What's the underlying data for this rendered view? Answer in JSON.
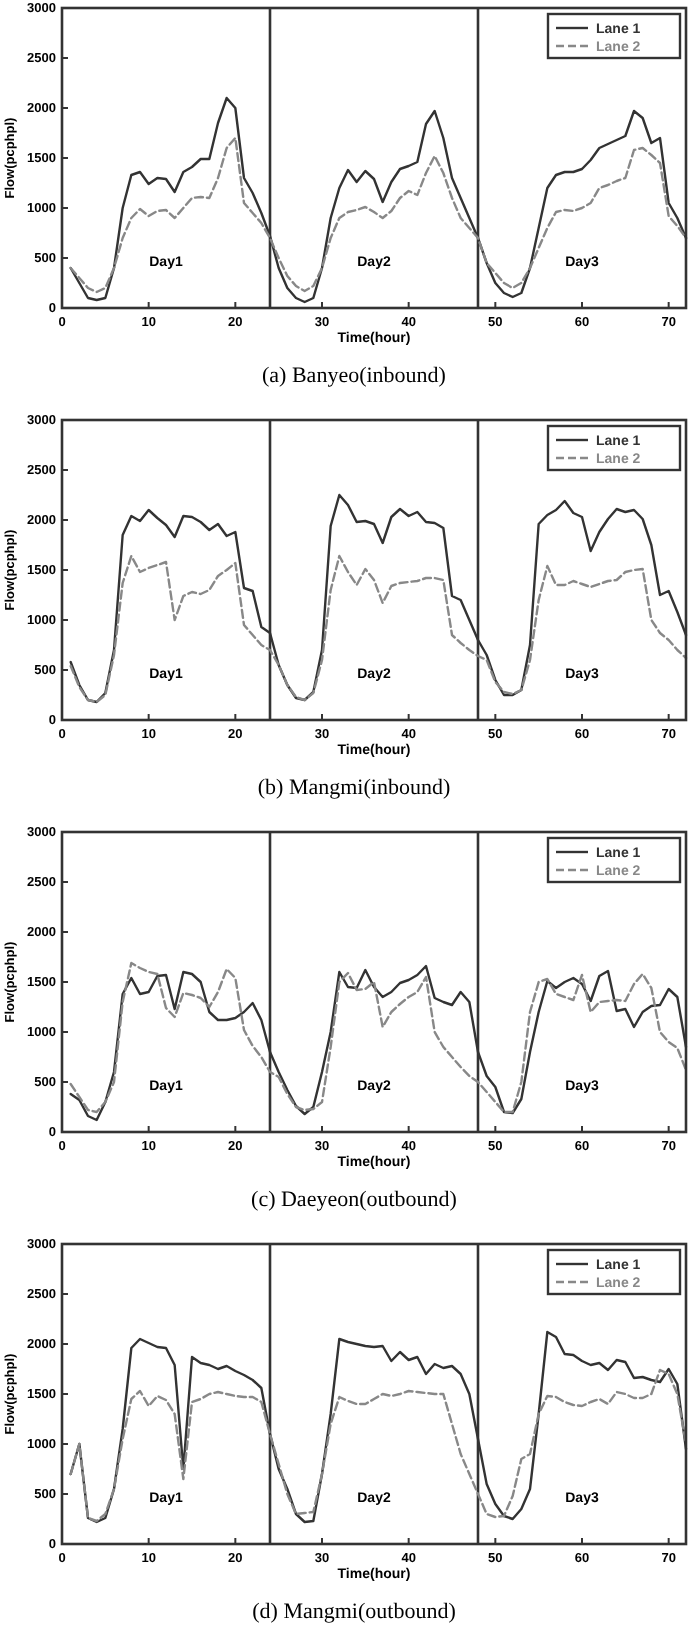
{
  "chart_data": [
    {
      "type": "line",
      "title": "(a) Banyeo(inbound)",
      "xlabel": "Time(hour)",
      "ylabel": "Flow(pcphpl)",
      "xlim": [
        0,
        72
      ],
      "xticks": [
        0,
        10,
        20,
        30,
        40,
        50,
        60,
        70
      ],
      "ylim": [
        0,
        3000
      ],
      "yticks": [
        0,
        500,
        1000,
        1500,
        2000,
        2500,
        3000
      ],
      "legend": "top right",
      "grid": false,
      "x": [
        1,
        2,
        3,
        4,
        5,
        6,
        7,
        8,
        9,
        10,
        11,
        12,
        13,
        14,
        15,
        16,
        17,
        18,
        19,
        20,
        21,
        22,
        23,
        24,
        25,
        26,
        27,
        28,
        29,
        30,
        31,
        32,
        33,
        34,
        35,
        36,
        37,
        38,
        39,
        40,
        41,
        42,
        43,
        44,
        45,
        46,
        47,
        48,
        49,
        50,
        51,
        52,
        53,
        54,
        55,
        56,
        57,
        58,
        59,
        60,
        61,
        62,
        63,
        64,
        65,
        66,
        67,
        68,
        69,
        70,
        71,
        72
      ],
      "ref_lines": [
        {
          "axis": "x",
          "value": 24
        },
        {
          "axis": "x",
          "value": 48
        }
      ],
      "annotations": [
        "Day1",
        "Day2",
        "Day3"
      ],
      "series": [
        {
          "name": "Lane 1",
          "color": "#333333",
          "line_style": "solid",
          "values": [
            400,
            250,
            100,
            80,
            100,
            400,
            1000,
            1330,
            1360,
            1240,
            1300,
            1290,
            1160,
            1360,
            1410,
            1490,
            1490,
            1850,
            2100,
            2000,
            1300,
            1150,
            950,
            720,
            400,
            200,
            100,
            60,
            100,
            400,
            900,
            1200,
            1380,
            1260,
            1370,
            1290,
            1060,
            1260,
            1390,
            1420,
            1460,
            1840,
            1970,
            1700,
            1300,
            1100,
            900,
            700,
            450,
            250,
            150,
            110,
            150,
            400,
            800,
            1200,
            1330,
            1360,
            1360,
            1390,
            1480,
            1600,
            1640,
            1680,
            1720,
            1970,
            1900,
            1650,
            1700,
            1050,
            900,
            700
          ]
        },
        {
          "name": "Lane 2",
          "color": "#888888",
          "line_style": "dashed",
          "values": [
            400,
            300,
            200,
            160,
            200,
            400,
            700,
            900,
            990,
            920,
            970,
            980,
            900,
            1000,
            1100,
            1110,
            1100,
            1300,
            1600,
            1700,
            1050,
            950,
            850,
            700,
            500,
            320,
            220,
            170,
            220,
            400,
            700,
            900,
            960,
            980,
            1010,
            960,
            900,
            970,
            1100,
            1170,
            1130,
            1350,
            1520,
            1350,
            1100,
            900,
            800,
            700,
            450,
            350,
            250,
            200,
            250,
            400,
            600,
            800,
            960,
            980,
            970,
            1000,
            1050,
            1200,
            1230,
            1270,
            1300,
            1580,
            1600,
            1530,
            1450,
            920,
            820,
            700
          ]
        }
      ]
    },
    {
      "type": "line",
      "title": "(b) Mangmi(inbound)",
      "xlabel": "Time(hour)",
      "ylabel": "Flow(pcphpl)",
      "xlim": [
        0,
        72
      ],
      "xticks": [
        0,
        10,
        20,
        30,
        40,
        50,
        60,
        70
      ],
      "ylim": [
        0,
        3000
      ],
      "yticks": [
        0,
        500,
        1000,
        1500,
        2000,
        2500,
        3000
      ],
      "legend": "top right",
      "grid": false,
      "x": [
        1,
        2,
        3,
        4,
        5,
        6,
        7,
        8,
        9,
        10,
        11,
        12,
        13,
        14,
        15,
        16,
        17,
        18,
        19,
        20,
        21,
        22,
        23,
        24,
        25,
        26,
        27,
        28,
        29,
        30,
        31,
        32,
        33,
        34,
        35,
        36,
        37,
        38,
        39,
        40,
        41,
        42,
        43,
        44,
        45,
        46,
        47,
        48,
        49,
        50,
        51,
        52,
        53,
        54,
        55,
        56,
        57,
        58,
        59,
        60,
        61,
        62,
        63,
        64,
        65,
        66,
        67,
        68,
        69,
        70,
        71,
        72
      ],
      "ref_lines": [
        {
          "axis": "x",
          "value": 24
        },
        {
          "axis": "x",
          "value": 48
        }
      ],
      "annotations": [
        "Day1",
        "Day2",
        "Day3"
      ],
      "series": [
        {
          "name": "Lane 1",
          "color": "#333333",
          "line_style": "solid",
          "values": [
            580,
            350,
            200,
            180,
            270,
            700,
            1850,
            2040,
            1990,
            2100,
            2020,
            1950,
            1830,
            2040,
            2030,
            1980,
            1900,
            1960,
            1840,
            1880,
            1320,
            1290,
            930,
            870,
            550,
            350,
            220,
            200,
            280,
            700,
            1940,
            2250,
            2150,
            1980,
            1990,
            1960,
            1770,
            2030,
            2110,
            2040,
            2080,
            1980,
            1970,
            1920,
            1240,
            1200,
            1000,
            800,
            650,
            400,
            250,
            250,
            300,
            750,
            1960,
            2050,
            2100,
            2190,
            2070,
            2030,
            1690,
            1880,
            2010,
            2110,
            2080,
            2100,
            2010,
            1750,
            1250,
            1290,
            1080,
            850
          ]
        },
        {
          "name": "Lane 2",
          "color": "#888888",
          "line_style": "dashed",
          "values": [
            540,
            330,
            200,
            180,
            250,
            650,
            1370,
            1640,
            1480,
            1520,
            1550,
            1580,
            1000,
            1240,
            1280,
            1260,
            1300,
            1440,
            1500,
            1570,
            950,
            850,
            750,
            700,
            550,
            350,
            230,
            200,
            270,
            600,
            1300,
            1640,
            1480,
            1350,
            1510,
            1400,
            1170,
            1340,
            1370,
            1380,
            1390,
            1420,
            1420,
            1400,
            850,
            770,
            700,
            640,
            600,
            380,
            280,
            260,
            300,
            600,
            1200,
            1540,
            1350,
            1350,
            1390,
            1360,
            1330,
            1360,
            1390,
            1400,
            1480,
            1500,
            1510,
            1000,
            870,
            800,
            700,
            620
          ]
        }
      ]
    },
    {
      "type": "line",
      "title": "(c) Daeyeon(outbound)",
      "xlabel": "Time(hour)",
      "ylabel": "Flow(pcphpl)",
      "xlim": [
        0,
        72
      ],
      "xticks": [
        0,
        10,
        20,
        30,
        40,
        50,
        60,
        70
      ],
      "ylim": [
        0,
        3000
      ],
      "yticks": [
        0,
        500,
        1000,
        1500,
        2000,
        2500,
        3000
      ],
      "legend": "top right",
      "grid": false,
      "x": [
        1,
        2,
        3,
        4,
        5,
        6,
        7,
        8,
        9,
        10,
        11,
        12,
        13,
        14,
        15,
        16,
        17,
        18,
        19,
        20,
        21,
        22,
        23,
        24,
        25,
        26,
        27,
        28,
        29,
        30,
        31,
        32,
        33,
        34,
        35,
        36,
        37,
        38,
        39,
        40,
        41,
        42,
        43,
        44,
        45,
        46,
        47,
        48,
        49,
        50,
        51,
        52,
        53,
        54,
        55,
        56,
        57,
        58,
        59,
        60,
        61,
        62,
        63,
        64,
        65,
        66,
        67,
        68,
        69,
        70,
        71,
        72
      ],
      "ref_lines": [
        {
          "axis": "x",
          "value": 24
        },
        {
          "axis": "x",
          "value": 48
        }
      ],
      "annotations": [
        "Day1",
        "Day2",
        "Day3"
      ],
      "series": [
        {
          "name": "Lane 1",
          "color": "#333333",
          "line_style": "solid",
          "values": [
            380,
            320,
            160,
            120,
            300,
            600,
            1380,
            1540,
            1380,
            1400,
            1560,
            1570,
            1230,
            1600,
            1580,
            1500,
            1200,
            1120,
            1120,
            1140,
            1200,
            1290,
            1120,
            800,
            600,
            420,
            260,
            180,
            250,
            600,
            1000,
            1600,
            1450,
            1440,
            1620,
            1450,
            1350,
            1400,
            1490,
            1520,
            1570,
            1660,
            1340,
            1300,
            1270,
            1400,
            1300,
            800,
            560,
            450,
            200,
            190,
            330,
            800,
            1200,
            1510,
            1440,
            1500,
            1540,
            1480,
            1310,
            1560,
            1610,
            1210,
            1230,
            1050,
            1200,
            1260,
            1270,
            1430,
            1350,
            850
          ]
        },
        {
          "name": "Lane 2",
          "color": "#888888",
          "line_style": "dashed",
          "values": [
            480,
            350,
            220,
            200,
            300,
            500,
            1300,
            1690,
            1640,
            1600,
            1580,
            1240,
            1150,
            1390,
            1370,
            1340,
            1250,
            1400,
            1630,
            1540,
            1020,
            860,
            750,
            600,
            550,
            380,
            250,
            220,
            230,
            300,
            850,
            1500,
            1590,
            1420,
            1430,
            1500,
            1050,
            1200,
            1280,
            1350,
            1400,
            1550,
            1000,
            850,
            750,
            650,
            560,
            500,
            400,
            300,
            200,
            200,
            500,
            1200,
            1500,
            1530,
            1380,
            1350,
            1320,
            1570,
            1200,
            1300,
            1310,
            1320,
            1310,
            1480,
            1580,
            1440,
            1000,
            900,
            840,
            620
          ]
        }
      ]
    },
    {
      "type": "line",
      "title": "(d) Mangmi(outbound)",
      "xlabel": "Time(hour)",
      "ylabel": "Flow(pcphpl)",
      "xlim": [
        0,
        72
      ],
      "xticks": [
        0,
        10,
        20,
        30,
        40,
        50,
        60,
        70
      ],
      "ylim": [
        0,
        3000
      ],
      "yticks": [
        0,
        500,
        1000,
        1500,
        2000,
        2500,
        3000
      ],
      "legend": "top right",
      "grid": false,
      "x": [
        1,
        2,
        3,
        4,
        5,
        6,
        7,
        8,
        9,
        10,
        11,
        12,
        13,
        14,
        15,
        16,
        17,
        18,
        19,
        20,
        21,
        22,
        23,
        24,
        25,
        26,
        27,
        28,
        29,
        30,
        31,
        32,
        33,
        34,
        35,
        36,
        37,
        38,
        39,
        40,
        41,
        42,
        43,
        44,
        45,
        46,
        47,
        48,
        49,
        50,
        51,
        52,
        53,
        54,
        55,
        56,
        57,
        58,
        59,
        60,
        61,
        62,
        63,
        64,
        65,
        66,
        67,
        68,
        69,
        70,
        71,
        72
      ],
      "ref_lines": [
        {
          "axis": "x",
          "value": 24
        },
        {
          "axis": "x",
          "value": 48
        }
      ],
      "annotations": [
        "Day1",
        "Day2",
        "Day3"
      ],
      "series": [
        {
          "name": "Lane 1",
          "color": "#333333",
          "line_style": "solid",
          "values": [
            700,
            1000,
            260,
            220,
            260,
            550,
            1150,
            1960,
            2050,
            2010,
            1970,
            1960,
            1790,
            750,
            1870,
            1810,
            1790,
            1750,
            1780,
            1730,
            1690,
            1640,
            1560,
            1100,
            750,
            550,
            300,
            220,
            230,
            700,
            1300,
            2050,
            2020,
            2000,
            1980,
            1970,
            1980,
            1830,
            1920,
            1840,
            1870,
            1700,
            1800,
            1760,
            1780,
            1700,
            1500,
            1050,
            600,
            400,
            280,
            250,
            350,
            550,
            1300,
            2120,
            2070,
            1900,
            1890,
            1830,
            1790,
            1810,
            1740,
            1840,
            1820,
            1660,
            1670,
            1640,
            1620,
            1750,
            1600,
            950
          ]
        },
        {
          "name": "Lane 2",
          "color": "#888888",
          "line_style": "dashed",
          "values": [
            700,
            1000,
            260,
            230,
            300,
            550,
            1050,
            1450,
            1530,
            1380,
            1480,
            1440,
            1300,
            650,
            1420,
            1450,
            1500,
            1520,
            1500,
            1480,
            1470,
            1470,
            1420,
            1100,
            800,
            500,
            300,
            310,
            320,
            700,
            1200,
            1470,
            1430,
            1400,
            1400,
            1450,
            1500,
            1480,
            1500,
            1530,
            1520,
            1510,
            1500,
            1500,
            1200,
            900,
            700,
            500,
            300,
            270,
            280,
            480,
            850,
            900,
            1300,
            1480,
            1470,
            1420,
            1390,
            1380,
            1420,
            1450,
            1400,
            1520,
            1500,
            1460,
            1460,
            1500,
            1740,
            1700,
            1500,
            1000
          ]
        }
      ]
    }
  ]
}
